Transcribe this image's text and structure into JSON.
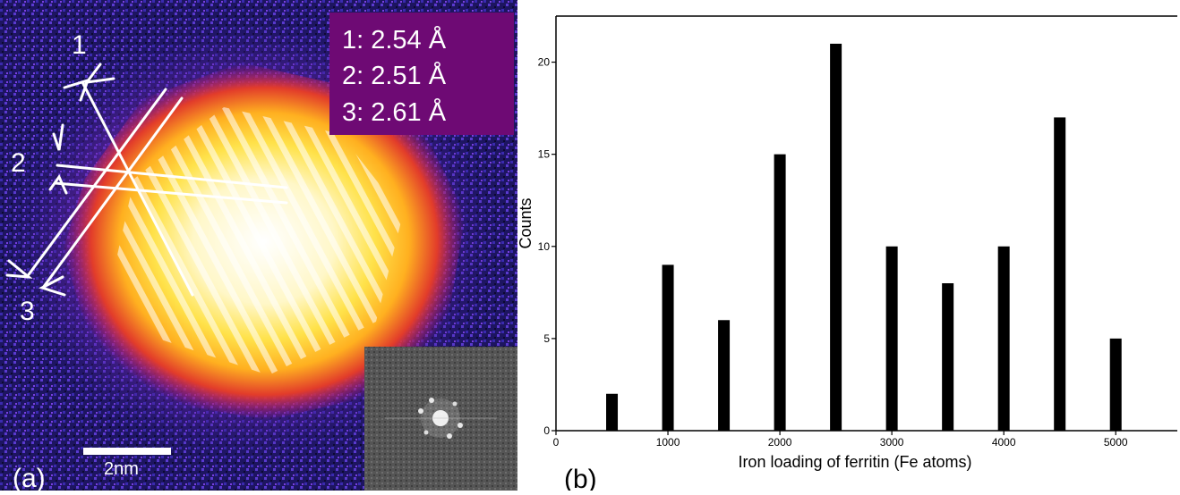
{
  "panel_a": {
    "panel_label": "(a)",
    "markers": [
      "1",
      "2",
      "3"
    ],
    "measurements": [
      "1: 2.54 Å",
      "2: 2.51 Å",
      "3: 2.61 Å"
    ],
    "measurement_box_color": "#6e0a74",
    "scale_bar_label": "2nm",
    "inset": "FFT pattern"
  },
  "chart_data": {
    "type": "bar",
    "panel_label": "(b)",
    "x": [
      500,
      1000,
      1500,
      2000,
      2500,
      3000,
      3500,
      4000,
      4500,
      5000
    ],
    "values": [
      2,
      9,
      6,
      15,
      21,
      10,
      8,
      10,
      17,
      5
    ],
    "xlabel": "Iron loading of ferritin (Fe atoms)",
    "ylabel": "Counts",
    "xlim": [
      0,
      5550
    ],
    "ylim": [
      0,
      22.5
    ],
    "xticks": [
      0,
      1000,
      2000,
      3000,
      4000,
      5000
    ],
    "yticks": [
      0,
      5,
      10,
      15,
      20
    ],
    "grid": false,
    "bar_color": "#000000"
  }
}
